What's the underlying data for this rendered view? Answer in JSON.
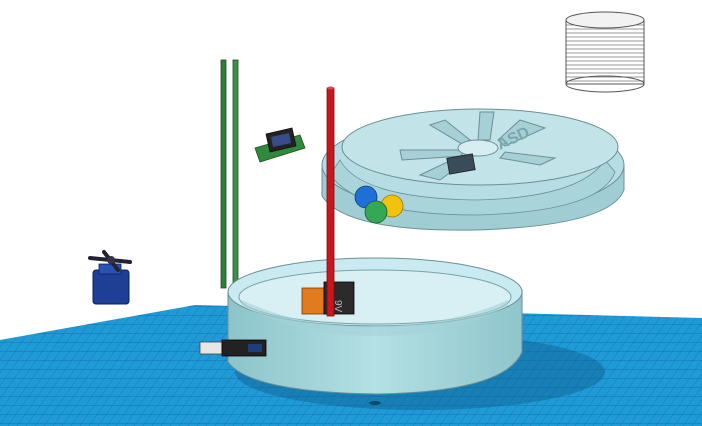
{
  "canvas": {
    "background": "#ffffff",
    "grid_color": "#1f9ad6",
    "grid_line_color": "#0f6fa8"
  },
  "scene": {
    "lid_engraving_text": "ASD",
    "battery_label": "9V",
    "colors": {
      "base_wall": "#a8d8dc",
      "base_floor": "#c9eaf0",
      "lid": "#b6dde3",
      "rod": "#c8171d",
      "pole": "#2e7d3b",
      "servo": "#1e3f95",
      "ball_blue": "#1f6fd6",
      "ball_green": "#34a853",
      "ball_yellow": "#f4c20d",
      "outline": "#6b8f95"
    }
  }
}
